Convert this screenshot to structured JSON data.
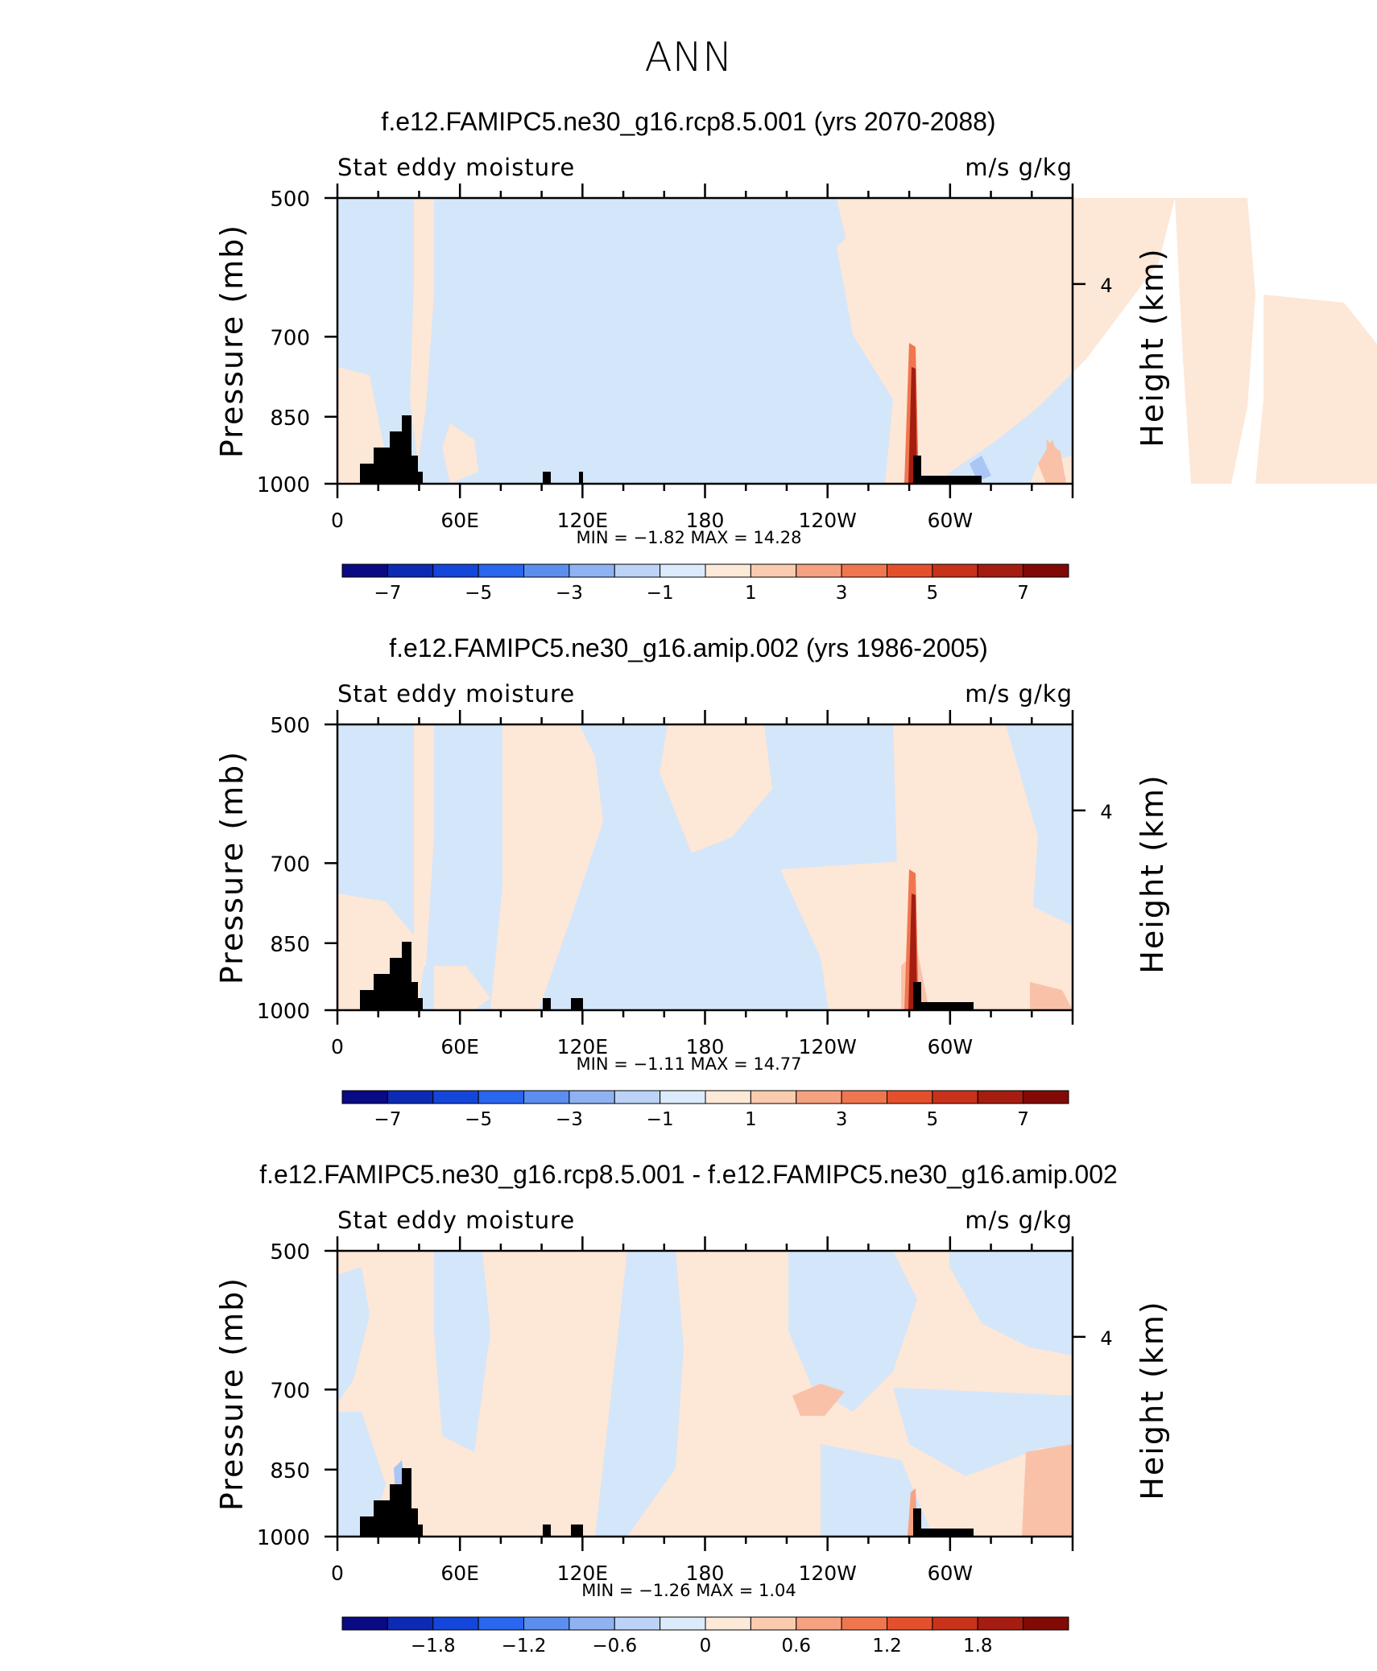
{
  "title": "ANN",
  "chart_data": [
    {
      "type": "heatmap",
      "title": "f.e12.FAMIPC5.ne30_g16.rcp8.5.001 (yrs 2070-2088)",
      "left_label": "Stat eddy moisture",
      "right_label": "m/s g/kg",
      "ylabel": "Pressure (mb)",
      "ylabel_right": "Height (km)",
      "y_ticks": [
        "500",
        "700",
        "850",
        "1000"
      ],
      "y_tick_values": [
        500,
        700,
        850,
        1000
      ],
      "right_ticks": [
        "4"
      ],
      "x_ticks": [
        "0",
        "60E",
        "120E",
        "180",
        "120W",
        "60W"
      ],
      "x_tick_values": [
        0,
        60,
        120,
        180,
        240,
        300
      ],
      "xlim": [
        0,
        360
      ],
      "ylim": [
        1000,
        500
      ],
      "min_text": "MIN =   −1.82   MAX =   14.28",
      "colorbar_labels": [
        "−7",
        "−5",
        "−3",
        "−1",
        "1",
        "3",
        "5",
        "7"
      ],
      "colorbar_colors": [
        "#0a0a84",
        "#0d2ab5",
        "#1446d9",
        "#2a66ee",
        "#5b8eef",
        "#8fb2f2",
        "#bcd3f7",
        "#dcebfb",
        "#fde9d8",
        "#fbcbb0",
        "#f6a180",
        "#f07650",
        "#e4502c",
        "#c8321a",
        "#a51d10",
        "#820a06"
      ]
    },
    {
      "type": "heatmap",
      "title": "f.e12.FAMIPC5.ne30_g16.amip.002 (yrs 1986-2005)",
      "left_label": "Stat eddy moisture",
      "right_label": "m/s g/kg",
      "ylabel": "Pressure (mb)",
      "ylabel_right": "Height (km)",
      "y_ticks": [
        "500",
        "700",
        "850",
        "1000"
      ],
      "y_tick_values": [
        500,
        700,
        850,
        1000
      ],
      "right_ticks": [
        "4"
      ],
      "x_ticks": [
        "0",
        "60E",
        "120E",
        "180",
        "120W",
        "60W"
      ],
      "x_tick_values": [
        0,
        60,
        120,
        180,
        240,
        300
      ],
      "xlim": [
        0,
        360
      ],
      "ylim": [
        1000,
        500
      ],
      "min_text": "MIN =   −1.11   MAX =   14.77",
      "colorbar_labels": [
        "−7",
        "−5",
        "−3",
        "−1",
        "1",
        "3",
        "5",
        "7"
      ],
      "colorbar_colors": [
        "#0a0a84",
        "#0d2ab5",
        "#1446d9",
        "#2a66ee",
        "#5b8eef",
        "#8fb2f2",
        "#bcd3f7",
        "#dcebfb",
        "#fde9d8",
        "#fbcbb0",
        "#f6a180",
        "#f07650",
        "#e4502c",
        "#c8321a",
        "#a51d10",
        "#820a06"
      ]
    },
    {
      "type": "heatmap",
      "title": "f.e12.FAMIPC5.ne30_g16.rcp8.5.001 - f.e12.FAMIPC5.ne30_g16.amip.002",
      "left_label": "Stat eddy moisture",
      "right_label": "m/s g/kg",
      "ylabel": "Pressure (mb)",
      "ylabel_right": "Height (km)",
      "y_ticks": [
        "500",
        "700",
        "850",
        "1000"
      ],
      "y_tick_values": [
        500,
        700,
        850,
        1000
      ],
      "right_ticks": [
        "4"
      ],
      "x_ticks": [
        "0",
        "60E",
        "120E",
        "180",
        "120W",
        "60W"
      ],
      "x_tick_values": [
        0,
        60,
        120,
        180,
        240,
        300
      ],
      "xlim": [
        0,
        360
      ],
      "ylim": [
        1000,
        500
      ],
      "min_text": "MIN =   −1.26   MAX =   1.04",
      "colorbar_labels": [
        "−1.8",
        "−1.2",
        "−0.6",
        "0",
        "0.6",
        "1.2",
        "1.8"
      ],
      "colorbar_colors": [
        "#0a0a84",
        "#0d2ab5",
        "#1446d9",
        "#2a66ee",
        "#5b8eef",
        "#8fb2f2",
        "#bcd3f7",
        "#dcebfb",
        "#fde9d8",
        "#fbcbb0",
        "#f6a180",
        "#f07650",
        "#e4502c",
        "#c8321a",
        "#a51d10",
        "#820a06"
      ]
    }
  ]
}
